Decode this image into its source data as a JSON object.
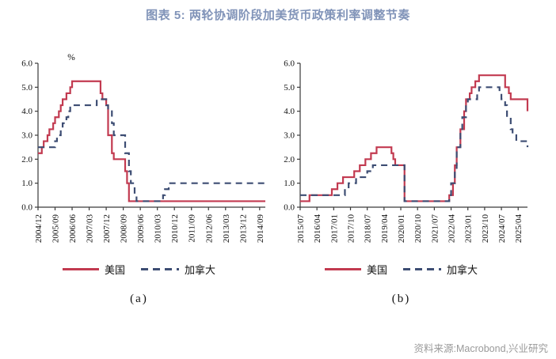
{
  "page": {
    "title": "图表 5: 两轮协调阶段加美货币政策利率调整节奏",
    "source": "资料来源:Macrobond,兴业研究"
  },
  "colors": {
    "us": "#c23a50",
    "canada": "#3d4d73",
    "title": "#8093b8",
    "axis": "#3a3a3a",
    "source": "#9a9a9a"
  },
  "legend": {
    "us": "美国",
    "canada": "加拿大"
  },
  "panels": [
    {
      "caption": "(a)"
    },
    {
      "caption": "(b)"
    }
  ],
  "chart_data": [
    {
      "type": "line",
      "panel": "(a)",
      "unit": "%",
      "x_start": "2004/12",
      "x_end": "2014/12",
      "ylim": [
        0,
        6
      ],
      "y_ticks": [
        "0.0",
        "1.0",
        "2.0",
        "3.0",
        "4.0",
        "5.0",
        "6.0"
      ],
      "x_tick_labels": [
        "2004/12",
        "2005/09",
        "2006/06",
        "2007/03",
        "2007/12",
        "2008/09",
        "2009/06",
        "2010/03",
        "2010/12",
        "2011/09",
        "2012/06",
        "2013/03",
        "2013/12",
        "2014/09"
      ],
      "grid": false,
      "legend_position": "bottom",
      "series": [
        {
          "name": "美国",
          "color": "us",
          "style": "solid",
          "steps": [
            [
              "2004/12",
              2.25
            ],
            [
              "2005/02",
              2.5
            ],
            [
              "2005/03",
              2.75
            ],
            [
              "2005/05",
              3.0
            ],
            [
              "2005/06",
              3.25
            ],
            [
              "2005/08",
              3.5
            ],
            [
              "2005/09",
              3.75
            ],
            [
              "2005/11",
              4.0
            ],
            [
              "2005/12",
              4.25
            ],
            [
              "2006/01",
              4.5
            ],
            [
              "2006/03",
              4.75
            ],
            [
              "2006/05",
              5.0
            ],
            [
              "2006/06",
              5.25
            ],
            [
              "2007/09",
              4.75
            ],
            [
              "2007/10",
              4.5
            ],
            [
              "2007/12",
              4.25
            ],
            [
              "2008/01",
              3.0
            ],
            [
              "2008/03",
              2.25
            ],
            [
              "2008/04",
              2.0
            ],
            [
              "2008/10",
              1.5
            ],
            [
              "2008/11",
              1.0
            ],
            [
              "2008/12",
              0.25
            ]
          ]
        },
        {
          "name": "加拿大",
          "color": "canada",
          "style": "dashed",
          "steps": [
            [
              "2004/12",
              2.5
            ],
            [
              "2005/09",
              2.75
            ],
            [
              "2005/10",
              3.0
            ],
            [
              "2005/12",
              3.25
            ],
            [
              "2006/01",
              3.5
            ],
            [
              "2006/03",
              3.75
            ],
            [
              "2006/04",
              4.0
            ],
            [
              "2006/05",
              4.25
            ],
            [
              "2007/07",
              4.5
            ],
            [
              "2007/12",
              4.25
            ],
            [
              "2008/01",
              4.0
            ],
            [
              "2008/03",
              3.5
            ],
            [
              "2008/04",
              3.0
            ],
            [
              "2008/10",
              2.25
            ],
            [
              "2008/12",
              1.5
            ],
            [
              "2009/01",
              1.0
            ],
            [
              "2009/03",
              0.5
            ],
            [
              "2009/04",
              0.25
            ],
            [
              "2010/06",
              0.5
            ],
            [
              "2010/07",
              0.75
            ],
            [
              "2010/09",
              1.0
            ]
          ]
        }
      ]
    },
    {
      "type": "line",
      "panel": "(b)",
      "unit": "",
      "x_start": "2015/07",
      "x_end": "2025/09",
      "ylim": [
        0,
        6
      ],
      "y_ticks": [
        "0.0",
        "1.0",
        "2.0",
        "3.0",
        "4.0",
        "5.0",
        "6.0"
      ],
      "x_tick_labels": [
        "2015/07",
        "2016/04",
        "2017/01",
        "2017/10",
        "2018/07",
        "2019/04",
        "2020/01",
        "2020/10",
        "2021/07",
        "2022/04",
        "2023/01",
        "2023/10",
        "2024/07",
        "2025/04"
      ],
      "grid": false,
      "legend_position": "bottom",
      "series": [
        {
          "name": "美国",
          "color": "us",
          "style": "solid",
          "steps": [
            [
              "2015/07",
              0.25
            ],
            [
              "2015/12",
              0.5
            ],
            [
              "2016/12",
              0.75
            ],
            [
              "2017/03",
              1.0
            ],
            [
              "2017/06",
              1.25
            ],
            [
              "2017/12",
              1.5
            ],
            [
              "2018/03",
              1.75
            ],
            [
              "2018/06",
              2.0
            ],
            [
              "2018/09",
              2.25
            ],
            [
              "2018/12",
              2.5
            ],
            [
              "2019/08",
              2.25
            ],
            [
              "2019/09",
              2.0
            ],
            [
              "2019/10",
              1.75
            ],
            [
              "2020/03",
              0.25
            ],
            [
              "2022/03",
              0.5
            ],
            [
              "2022/05",
              1.0
            ],
            [
              "2022/06",
              1.75
            ],
            [
              "2022/07",
              2.5
            ],
            [
              "2022/09",
              3.25
            ],
            [
              "2022/11",
              4.0
            ],
            [
              "2022/12",
              4.5
            ],
            [
              "2023/02",
              4.75
            ],
            [
              "2023/03",
              5.0
            ],
            [
              "2023/05",
              5.25
            ],
            [
              "2023/07",
              5.5
            ],
            [
              "2024/09",
              5.0
            ],
            [
              "2024/11",
              4.75
            ],
            [
              "2024/12",
              4.5
            ],
            [
              "2025/09",
              4.0
            ]
          ]
        },
        {
          "name": "加拿大",
          "color": "canada",
          "style": "dashed",
          "steps": [
            [
              "2015/07",
              0.5
            ],
            [
              "2017/07",
              0.75
            ],
            [
              "2017/09",
              1.0
            ],
            [
              "2018/01",
              1.25
            ],
            [
              "2018/07",
              1.5
            ],
            [
              "2018/10",
              1.75
            ],
            [
              "2020/03",
              0.25
            ],
            [
              "2022/03",
              0.5
            ],
            [
              "2022/04",
              1.0
            ],
            [
              "2022/06",
              1.5
            ],
            [
              "2022/07",
              2.5
            ],
            [
              "2022/09",
              3.25
            ],
            [
              "2022/10",
              3.75
            ],
            [
              "2022/12",
              4.25
            ],
            [
              "2023/01",
              4.5
            ],
            [
              "2023/06",
              4.75
            ],
            [
              "2023/07",
              5.0
            ],
            [
              "2024/06",
              4.75
            ],
            [
              "2024/07",
              4.5
            ],
            [
              "2024/09",
              4.25
            ],
            [
              "2024/10",
              3.75
            ],
            [
              "2024/12",
              3.25
            ],
            [
              "2025/01",
              3.0
            ],
            [
              "2025/03",
              2.75
            ],
            [
              "2025/09",
              2.5
            ]
          ]
        }
      ]
    }
  ]
}
